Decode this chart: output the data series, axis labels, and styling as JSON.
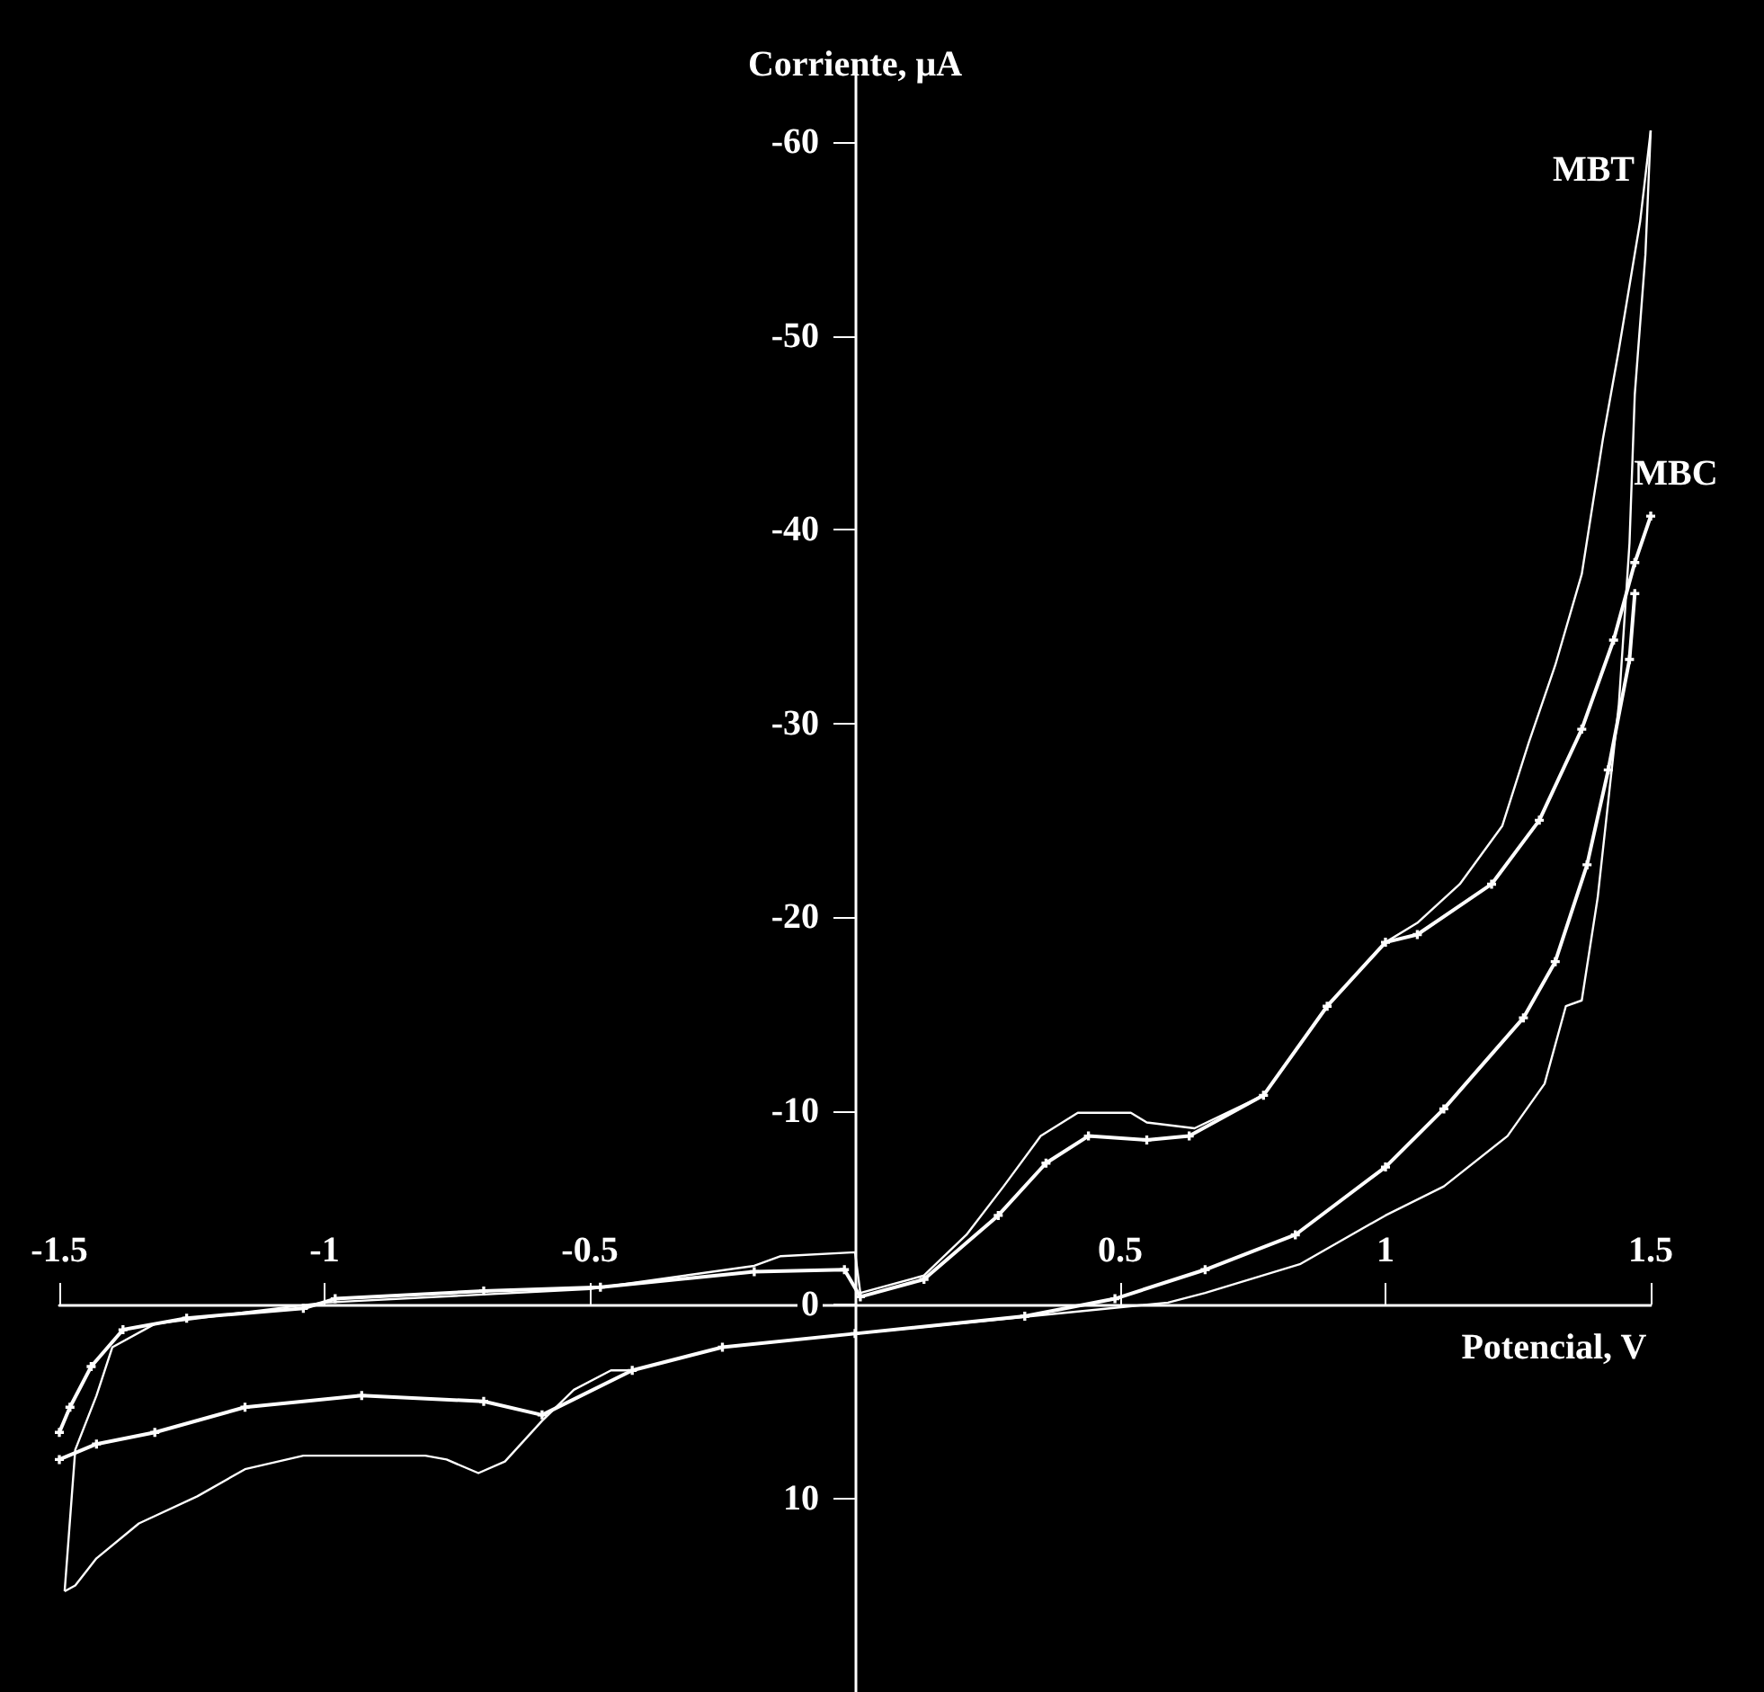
{
  "chart_data": {
    "type": "line",
    "ylabel": "Corriente, μA",
    "xlabel": "Potencial, V",
    "xlim": [
      -1.5,
      1.5
    ],
    "xticks": [
      -1.5,
      -1,
      -0.5,
      0.5,
      1,
      1.5
    ],
    "ylim": [
      20,
      -64
    ],
    "yticks": [
      -60,
      -50,
      -40,
      -30,
      -20,
      -10,
      0,
      10
    ],
    "grid": false,
    "legend": false,
    "series": [
      {
        "name": "MBT",
        "color": "#ffffff",
        "marker": "none",
        "x": [
          -1.49,
          -1.47,
          -1.43,
          -1.4,
          -1.32,
          -1.15,
          -1,
          -0.5,
          -0.19,
          -0.14,
          0,
          0.01,
          0.13,
          0.21,
          0.28,
          0.35,
          0.42,
          0.52,
          0.55,
          0.64,
          0.77,
          0.89,
          1,
          1.06,
          1.14,
          1.22,
          1.27,
          1.32,
          1.37,
          1.41,
          1.44,
          1.48,
          1.5
        ],
        "values": [
          14.8,
          7.5,
          4.7,
          2.2,
          1,
          0.4,
          -0.1,
          -0.8,
          -2,
          -2.5,
          -2.7,
          -0.6,
          -1.5,
          -3.6,
          -6.1,
          -8.7,
          -9.9,
          -9.9,
          -9.4,
          -9.1,
          -10.8,
          -15.4,
          -18.7,
          -19.7,
          -21.7,
          -24.7,
          -29,
          -33,
          -37.7,
          -44.7,
          -49.3,
          -55.9,
          -60.6
        ]
      },
      {
        "color": "#ffffff",
        "marker": "none",
        "x": [
          1.5,
          1.49,
          1.47,
          1.46,
          1.44,
          1.4,
          1.37,
          1.34,
          1.3,
          1.23,
          1.11,
          1,
          0.84,
          0.66,
          0.59,
          0,
          -0.25,
          -0.42,
          -0.46,
          -0.53,
          -0.59,
          -0.66,
          -0.71,
          -0.77,
          -0.81,
          -1.04,
          -1.15,
          -1.24,
          -1.35,
          -1.43,
          -1.47,
          -1.49
        ],
        "values": [
          -60.6,
          -54.2,
          -47,
          -39.3,
          -31,
          -21,
          -15.7,
          -15.4,
          -11.4,
          -8.7,
          -6.1,
          -4.6,
          -2.1,
          -0.6,
          -0.1,
          1.5,
          2.2,
          3.4,
          3.4,
          4.4,
          6,
          8.1,
          8.7,
          8,
          7.8,
          7.8,
          8.5,
          9.9,
          11.3,
          13.1,
          14.5,
          14.8
        ]
      },
      {
        "name": "MBC",
        "color": "#ffffff",
        "marker": "cross",
        "x": [
          -1.5,
          -1.48,
          -1.44,
          -1.38,
          -1.26,
          -1.04,
          -0.98,
          -0.7,
          -0.48,
          -0.19,
          -0.02,
          0.01,
          0.13,
          0.27,
          0.36,
          0.44,
          0.55,
          0.63,
          0.77,
          0.89,
          1,
          1.06,
          1.2,
          1.29,
          1.37,
          1.43,
          1.47,
          1.5
        ],
        "values": [
          6.6,
          5.3,
          3.2,
          1.3,
          0.7,
          0.2,
          -0.3,
          -0.7,
          -0.9,
          -1.7,
          -1.8,
          -0.4,
          -1.3,
          -4.6,
          -7.3,
          -8.7,
          -8.5,
          -8.7,
          -10.8,
          -15.4,
          -18.7,
          -19.1,
          -21.7,
          -25,
          -29.7,
          -34.3,
          -38.3,
          -40.7
        ]
      },
      {
        "color": "#ffffff",
        "marker": "cross",
        "x": [
          1.47,
          1.46,
          1.42,
          1.38,
          1.32,
          1.26,
          1.11,
          1,
          0.83,
          0.66,
          0.49,
          0.32,
          0,
          -0.25,
          -0.42,
          -0.59,
          -0.7,
          -0.93,
          -1.15,
          -1.32,
          -1.43,
          -1.5
        ],
        "values": [
          -36.7,
          -33.3,
          -27.6,
          -22.7,
          -17.7,
          -14.8,
          -10.1,
          -7.1,
          -3.6,
          -1.8,
          -0.3,
          0.6,
          1.5,
          2.2,
          3.4,
          5.7,
          5,
          4.7,
          5.3,
          6.6,
          7.2,
          8
        ]
      }
    ]
  }
}
